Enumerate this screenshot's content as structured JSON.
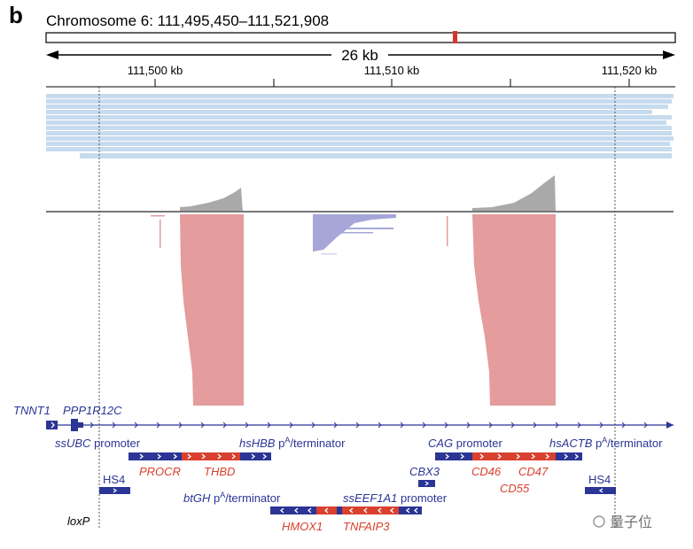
{
  "panel_letter": "b",
  "chromosome_title": "Chromosome 6: 111,495,450–111,521,908",
  "scale_label": "26 kb",
  "axis_ticks": [
    "111,500 kb",
    "111,510 kb",
    "111,520 kb"
  ],
  "genes": {
    "tnnt1": "TNNT1",
    "ppp1r12c": "PPP1R12C"
  },
  "elements": {
    "ssubc": "ssUBC",
    "ssubc_suffix": " promoter",
    "hshbb": "hsHBB",
    "hshbb_suffix": " p",
    "hshbb_sup": "A",
    "hshbb_tail": "/terminator",
    "procr": "PROCR",
    "thbd": "THBD",
    "hs4_left": "HS4",
    "hs4_right": "HS4",
    "btgh": "btGH",
    "btgh_suffix": " p",
    "btgh_sup": "A",
    "btgh_tail": "/terminator",
    "sseef1a1": "ssEEF1A1",
    "sseef1a1_suffix": " promoter",
    "hmox1": "HMOX1",
    "tnfaip3": "TNFAIP3",
    "cag": "CAG",
    "cag_suffix": " promoter",
    "hsactb": "hsACTB",
    "hsactb_suffix": " p",
    "hsactb_sup": "A",
    "hsactb_tail": "/terminator",
    "cbx3": "CBX3",
    "cd46": "CD46",
    "cd47": "CD47",
    "cd55": "CD55",
    "loxp": "loxP"
  },
  "watermark": "量子位",
  "colors": {
    "navy": "#2a3595",
    "red": "#d9402e",
    "read_blue": "#c6dbee",
    "coverage_grey": "#a9a9a9",
    "salmon": "#e49c9c",
    "lavender": "#a6a6d8",
    "ideogram_mark": "#d9342b"
  }
}
